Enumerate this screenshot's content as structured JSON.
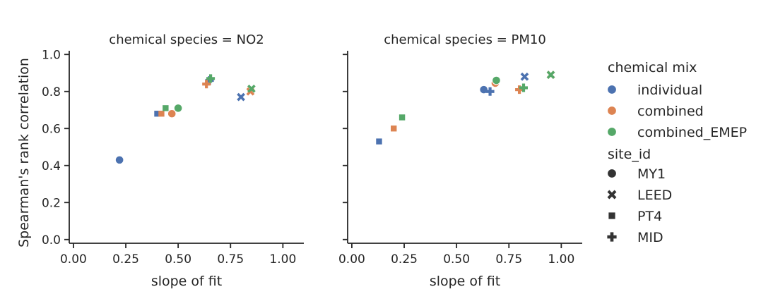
{
  "chart_data": [
    {
      "type": "scatter",
      "title": "chemical species = NO2",
      "xlabel": "slope of fit",
      "ylabel": "Spearman's rank correlation",
      "xlim": [
        -0.02,
        1.1
      ],
      "ylim": [
        -0.02,
        1.02
      ],
      "xticks": [
        "0.00",
        "0.25",
        "0.50",
        "0.75",
        "1.00"
      ],
      "yticks": [
        "0.0",
        "0.2",
        "0.4",
        "0.6",
        "0.8",
        "1.0"
      ],
      "points": [
        {
          "x": 0.22,
          "y": 0.43,
          "mix": "individual",
          "site": "MY1"
        },
        {
          "x": 0.47,
          "y": 0.68,
          "mix": "combined",
          "site": "MY1"
        },
        {
          "x": 0.5,
          "y": 0.71,
          "mix": "combined_EMEP",
          "site": "MY1"
        },
        {
          "x": 0.8,
          "y": 0.77,
          "mix": "individual",
          "site": "LEED"
        },
        {
          "x": 0.845,
          "y": 0.8,
          "mix": "combined",
          "site": "LEED"
        },
        {
          "x": 0.85,
          "y": 0.815,
          "mix": "combined_EMEP",
          "site": "LEED"
        },
        {
          "x": 0.4,
          "y": 0.68,
          "mix": "individual",
          "site": "PT4"
        },
        {
          "x": 0.42,
          "y": 0.68,
          "mix": "combined",
          "site": "PT4"
        },
        {
          "x": 0.44,
          "y": 0.71,
          "mix": "combined_EMEP",
          "site": "PT4"
        },
        {
          "x": 0.65,
          "y": 0.86,
          "mix": "individual",
          "site": "MID"
        },
        {
          "x": 0.635,
          "y": 0.84,
          "mix": "combined",
          "site": "MID"
        },
        {
          "x": 0.655,
          "y": 0.87,
          "mix": "combined_EMEP",
          "site": "MID"
        }
      ]
    },
    {
      "type": "scatter",
      "title": "chemical species = PM10",
      "xlabel": "slope of fit",
      "ylabel": "",
      "xlim": [
        -0.02,
        1.1
      ],
      "ylim": [
        -0.02,
        1.02
      ],
      "xticks": [
        "0.00",
        "0.25",
        "0.50",
        "0.75",
        "1.00"
      ],
      "yticks": [
        "0.0",
        "0.2",
        "0.4",
        "0.6",
        "0.8",
        "1.0"
      ],
      "points": [
        {
          "x": 0.63,
          "y": 0.81,
          "mix": "individual",
          "site": "MY1"
        },
        {
          "x": 0.685,
          "y": 0.845,
          "mix": "combined",
          "site": "MY1"
        },
        {
          "x": 0.69,
          "y": 0.86,
          "mix": "combined_EMEP",
          "site": "MY1"
        },
        {
          "x": 0.825,
          "y": 0.88,
          "mix": "individual",
          "site": "LEED"
        },
        {
          "x": 0.95,
          "y": 0.89,
          "mix": "combined",
          "site": "LEED"
        },
        {
          "x": 0.95,
          "y": 0.89,
          "mix": "combined_EMEP",
          "site": "LEED"
        },
        {
          "x": 0.13,
          "y": 0.53,
          "mix": "individual",
          "site": "PT4"
        },
        {
          "x": 0.2,
          "y": 0.6,
          "mix": "combined",
          "site": "PT4"
        },
        {
          "x": 0.24,
          "y": 0.66,
          "mix": "combined_EMEP",
          "site": "PT4"
        },
        {
          "x": 0.66,
          "y": 0.8,
          "mix": "individual",
          "site": "MID"
        },
        {
          "x": 0.8,
          "y": 0.81,
          "mix": "combined",
          "site": "MID"
        },
        {
          "x": 0.82,
          "y": 0.82,
          "mix": "combined_EMEP",
          "site": "MID"
        }
      ]
    }
  ],
  "legend": {
    "hue_title": "chemical mix",
    "hue_items": [
      {
        "label": "individual",
        "color": "#4c72b0"
      },
      {
        "label": "combined",
        "color": "#dd8452"
      },
      {
        "label": "combined_EMEP",
        "color": "#55a868"
      }
    ],
    "style_title": "site_id",
    "style_items": [
      {
        "label": "MY1",
        "marker": "circle"
      },
      {
        "label": "LEED",
        "marker": "x"
      },
      {
        "label": "PT4",
        "marker": "square"
      },
      {
        "label": "MID",
        "marker": "plus"
      }
    ],
    "style_marker_color": "#333333"
  }
}
